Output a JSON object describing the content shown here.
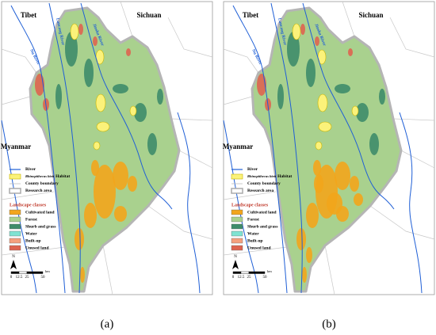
{
  "panels": [
    {
      "caption": "(a)",
      "places": [
        "Tibet",
        "Sichuan",
        "Myanmar"
      ],
      "rivers": [
        "Lancang River",
        "Jinsha River",
        "Nu River"
      ],
      "legend": {
        "symbols": [
          {
            "label": "River"
          },
          {
            "species": "Rhinopithecus bieti",
            "label": "Habitat"
          },
          {
            "label": "County boundary"
          },
          {
            "label": "Research area"
          }
        ],
        "classes_title": "Landscape classes",
        "classes": [
          {
            "label": "Cultivated land",
            "color": "#f2a51c"
          },
          {
            "label": "Forest",
            "color": "#a9d18e"
          },
          {
            "label": "Shurb and grass",
            "color": "#3e8c6a"
          },
          {
            "label": "Water",
            "color": "#7fe3d2"
          },
          {
            "label": "Built-up",
            "color": "#f4a07e"
          },
          {
            "label": "Unused land",
            "color": "#de6450"
          }
        ]
      },
      "north": "N",
      "scale": {
        "ticks": [
          0,
          12.5,
          25,
          50
        ],
        "unit": "km"
      }
    },
    {
      "caption": "(b)",
      "places": [
        "Tibet",
        "Sichuan",
        "Myanmar"
      ],
      "rivers": [
        "Lancang River",
        "Jinsha River",
        "Nu River"
      ],
      "legend": {
        "symbols": [
          {
            "label": "River"
          },
          {
            "species": "Rhinopithecus bieti",
            "label": "Habitat"
          },
          {
            "label": "County boundary"
          },
          {
            "label": "Research area"
          }
        ],
        "classes_title": "Landscape classes",
        "classes": [
          {
            "label": "Cultivated land",
            "color": "#f2a51c"
          },
          {
            "label": "Forest",
            "color": "#a9d18e"
          },
          {
            "label": "Shurb and grass",
            "color": "#3e8c6a"
          },
          {
            "label": "Water",
            "color": "#7fe3d2"
          },
          {
            "label": "Built-up",
            "color": "#f4a07e"
          },
          {
            "label": "Unused land",
            "color": "#de6450"
          }
        ]
      },
      "north": "N",
      "scale": {
        "ticks": [
          0,
          12.5,
          25,
          50
        ],
        "unit": "km"
      }
    }
  ]
}
